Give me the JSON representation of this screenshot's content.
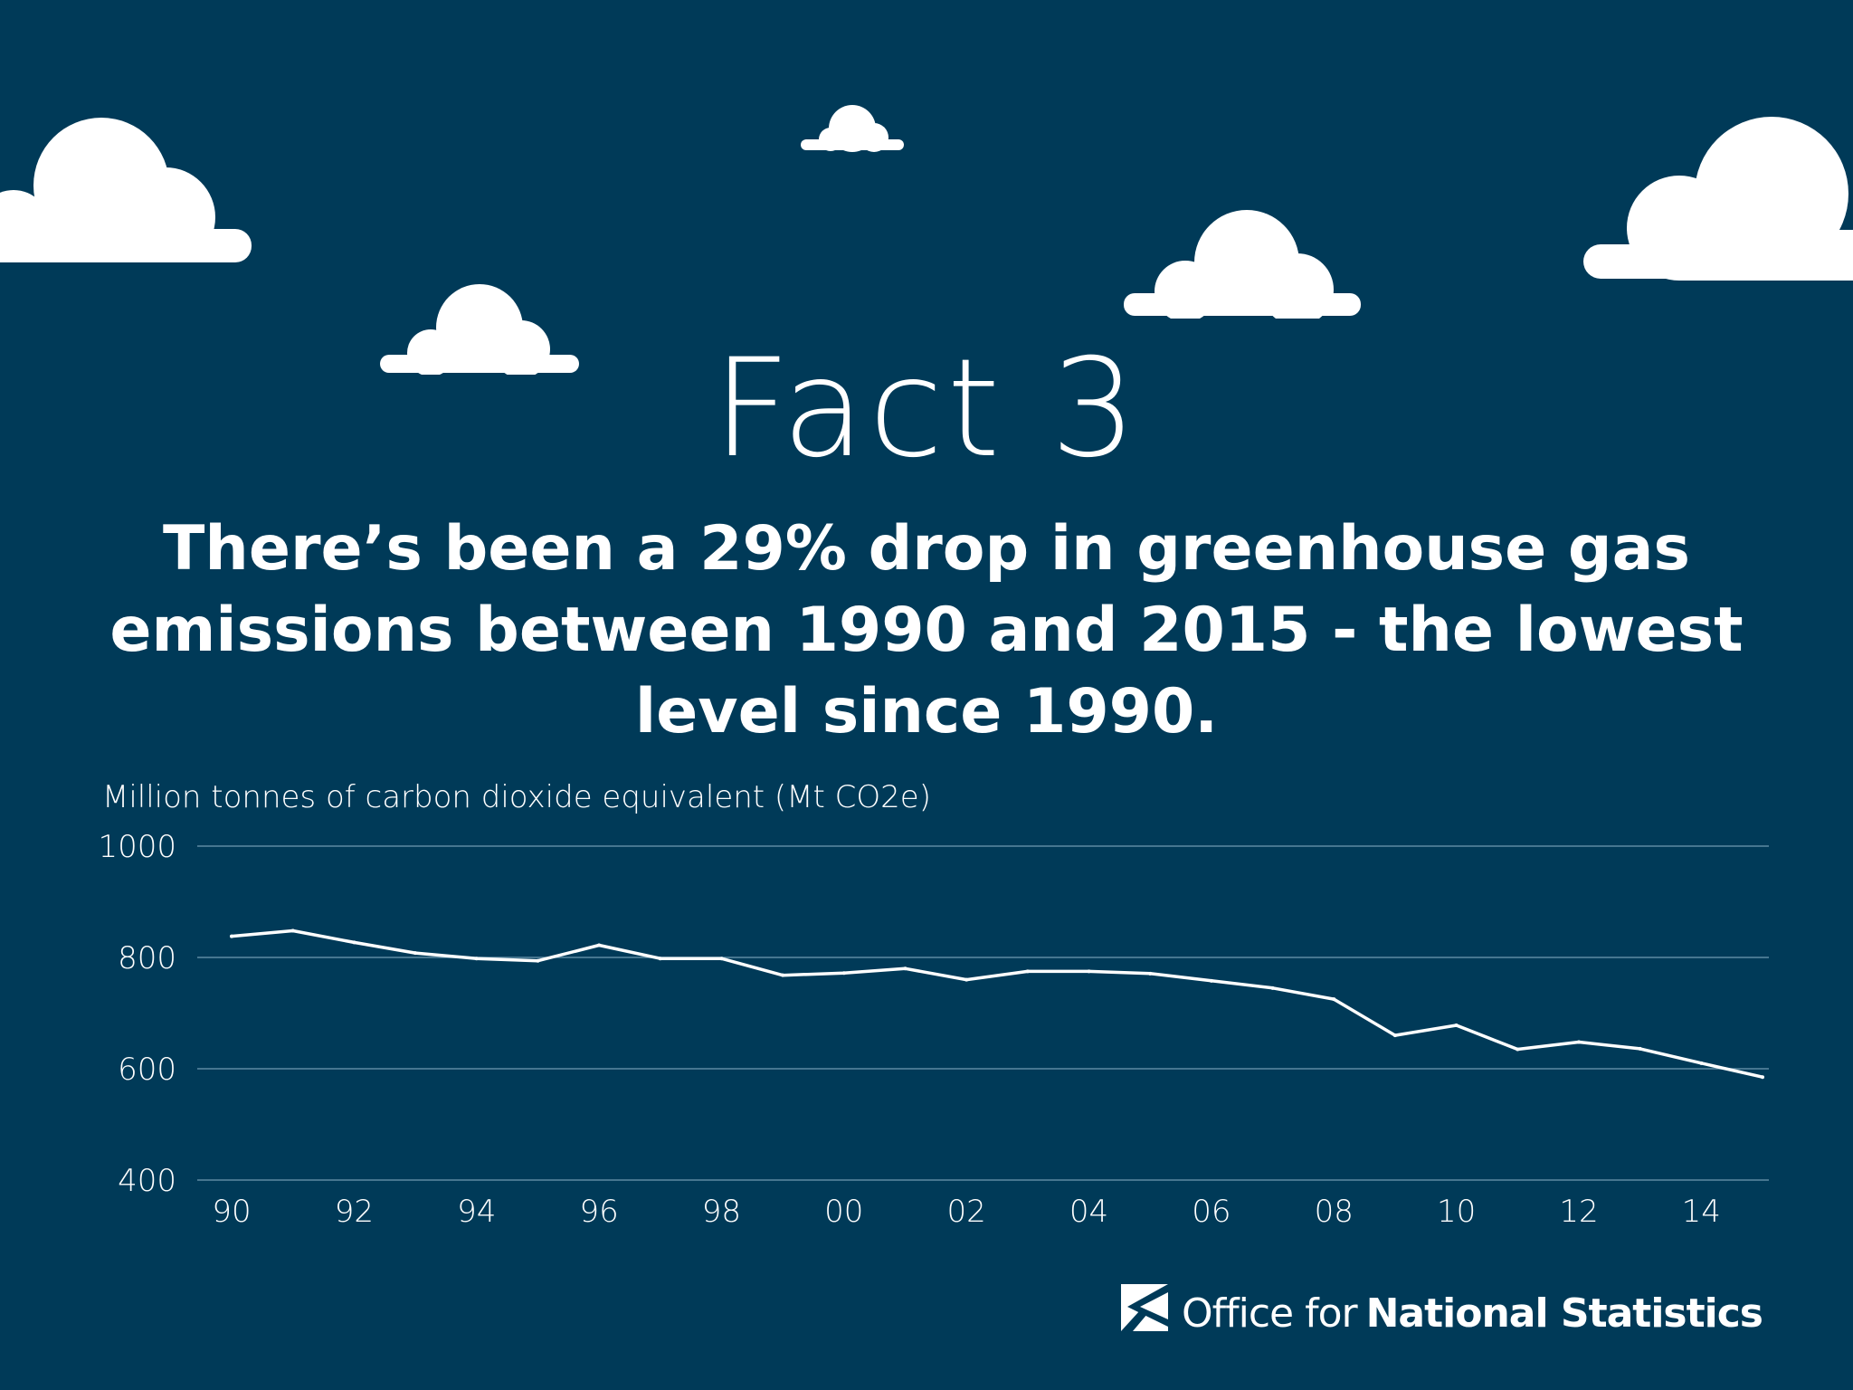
{
  "fact": {
    "title": "Fact 3"
  },
  "headline": "There’s been a 29% drop in greenhouse gas emissions between 1990 and 2015 - the lowest level since 1990.",
  "colors": {
    "background": "#003a58",
    "line": "#ffffff",
    "gridline": "#5d8aa3",
    "cloud": "#ffffff"
  },
  "chart_data": {
    "type": "line",
    "title": "",
    "ylabel": "Million tonnes of carbon dioxide equivalent (Mt CO2e)",
    "xlabel": "",
    "ylim": [
      400,
      1000
    ],
    "yticks": [
      1000,
      800,
      600,
      400
    ],
    "xlim": [
      1990,
      2015
    ],
    "xticks": [
      {
        "year": 1990,
        "label": "90"
      },
      {
        "year": 1992,
        "label": "92"
      },
      {
        "year": 1994,
        "label": "94"
      },
      {
        "year": 1996,
        "label": "96"
      },
      {
        "year": 1998,
        "label": "98"
      },
      {
        "year": 2000,
        "label": "00"
      },
      {
        "year": 2002,
        "label": "02"
      },
      {
        "year": 2004,
        "label": "04"
      },
      {
        "year": 2006,
        "label": "06"
      },
      {
        "year": 2008,
        "label": "08"
      },
      {
        "year": 2010,
        "label": "10"
      },
      {
        "year": 2012,
        "label": "12"
      },
      {
        "year": 2014,
        "label": "14"
      }
    ],
    "grid": true,
    "series": [
      {
        "name": "Greenhouse gas emissions",
        "x": [
          1990,
          1991,
          1992,
          1993,
          1994,
          1995,
          1996,
          1997,
          1998,
          1999,
          2000,
          2001,
          2002,
          2003,
          2004,
          2005,
          2006,
          2007,
          2008,
          2009,
          2010,
          2011,
          2012,
          2013,
          2014,
          2015
        ],
        "values": [
          838,
          848,
          827,
          808,
          798,
          794,
          822,
          798,
          798,
          768,
          772,
          780,
          760,
          775,
          775,
          771,
          758,
          745,
          725,
          660,
          678,
          635,
          648,
          636,
          610,
          585
        ]
      }
    ]
  },
  "logo": {
    "light_text": "Office for",
    "bold_text": "National Statistics"
  },
  "icons": {
    "logo_mark": "ons-logo-icon",
    "cloud": "cloud-icon"
  }
}
